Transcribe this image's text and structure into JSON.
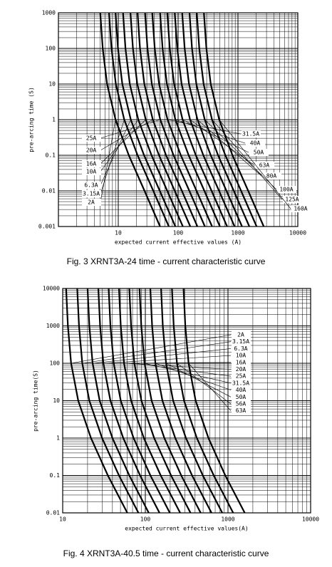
{
  "chart_data": [
    {
      "type": "line",
      "title": "Fig. 3 XRNT3A-24 time - current characteristic curve",
      "x_label": "expected current effective values (A)",
      "y_label": "pre-arcing time (S)",
      "xscale": "log",
      "yscale": "log",
      "grid": true,
      "minor_grid": true,
      "xlim": [
        1,
        10000
      ],
      "xticks": [
        10,
        100,
        1000,
        10000
      ],
      "ylim": [
        0.001,
        1000
      ],
      "yticks": [
        0.001,
        0.01,
        0.1,
        1,
        10,
        100,
        1000
      ],
      "series": [
        {
          "name": "2A",
          "color": "#000000",
          "x": [
            5,
            5.5,
            6.5,
            9,
            15,
            27.5,
            50
          ],
          "values": [
            1000,
            100,
            10,
            1,
            0.1,
            0.01,
            0.001
          ]
        },
        {
          "name": "3.15A",
          "color": "#000000",
          "x": [
            7,
            7.7,
            9.1,
            12.6,
            21,
            38.5,
            70
          ],
          "values": [
            1000,
            100,
            10,
            1,
            0.1,
            0.01,
            0.001
          ]
        },
        {
          "name": "6.3A",
          "color": "#000000",
          "x": [
            9,
            9.9,
            11.7,
            16.2,
            27,
            49.5,
            90
          ],
          "values": [
            1000,
            100,
            10,
            1,
            0.1,
            0.01,
            0.001
          ]
        },
        {
          "name": "10A",
          "color": "#000000",
          "x": [
            12,
            13.2,
            15.6,
            21.6,
            36,
            66,
            120
          ],
          "values": [
            1000,
            100,
            10,
            1,
            0.1,
            0.01,
            0.001
          ]
        },
        {
          "name": "16A",
          "color": "#000000",
          "x": [
            16,
            17.6,
            20.8,
            28.8,
            48,
            88,
            160
          ],
          "values": [
            1000,
            100,
            10,
            1,
            0.1,
            0.01,
            0.001
          ]
        },
        {
          "name": "20A",
          "color": "#000000",
          "x": [
            21,
            23.1,
            27.3,
            37.8,
            63,
            115.5,
            210
          ],
          "values": [
            1000,
            100,
            10,
            1,
            0.1,
            0.01,
            0.001
          ]
        },
        {
          "name": "25A",
          "color": "#000000",
          "x": [
            28,
            30.8,
            36.4,
            50.4,
            84,
            154,
            280
          ],
          "values": [
            1000,
            100,
            10,
            1,
            0.1,
            0.01,
            0.001
          ]
        },
        {
          "name": "31.5A",
          "color": "#000000",
          "x": [
            37,
            40.7,
            48.1,
            66.6,
            111,
            203.5,
            370
          ],
          "values": [
            1000,
            100,
            10,
            1,
            0.1,
            0.01,
            0.001
          ]
        },
        {
          "name": "40A",
          "color": "#000000",
          "x": [
            50,
            55,
            65,
            90,
            150,
            275,
            500
          ],
          "values": [
            1000,
            100,
            10,
            1,
            0.1,
            0.01,
            0.001
          ]
        },
        {
          "name": "50A",
          "color": "#000000",
          "x": [
            66,
            72.6,
            85.8,
            118.8,
            198,
            363,
            660
          ],
          "values": [
            1000,
            100,
            10,
            1,
            0.1,
            0.01,
            0.001
          ]
        },
        {
          "name": "63A",
          "color": "#000000",
          "x": [
            88,
            96.8,
            114.4,
            158.4,
            264,
            484,
            880
          ],
          "values": [
            1000,
            100,
            10,
            1,
            0.1,
            0.01,
            0.001
          ]
        },
        {
          "name": "80A",
          "color": "#000000",
          "x": [
            117,
            128.7,
            152.1,
            210.6,
            351,
            643.5,
            1170
          ],
          "values": [
            1000,
            100,
            10,
            1,
            0.1,
            0.01,
            0.001
          ]
        },
        {
          "name": "100A",
          "color": "#000000",
          "x": [
            155,
            170.5,
            201.5,
            279,
            465,
            852.5,
            1550
          ],
          "values": [
            1000,
            100,
            10,
            1,
            0.1,
            0.01,
            0.001
          ]
        },
        {
          "name": "125A",
          "color": "#000000",
          "x": [
            205,
            225.5,
            266.5,
            369,
            615,
            1127.5,
            2050
          ],
          "values": [
            1000,
            100,
            10,
            1,
            0.1,
            0.01,
            0.001
          ]
        },
        {
          "name": "160A",
          "color": "#000000",
          "x": [
            270,
            297,
            351,
            486,
            810,
            1485,
            2700
          ],
          "values": [
            1000,
            100,
            10,
            1,
            0.1,
            0.01,
            0.001
          ]
        }
      ]
    },
    {
      "type": "line",
      "title": "Fig. 4 XRNT3A-40.5 time - current characteristic curve",
      "x_label": "expected current effective values(A)",
      "y_label": "pre-arcing time(S)",
      "xscale": "log",
      "yscale": "log",
      "grid": true,
      "minor_grid": true,
      "xlim": [
        10,
        10000
      ],
      "xticks": [
        10,
        100,
        1000,
        10000
      ],
      "ylim": [
        0.01,
        10000
      ],
      "yticks": [
        0.01,
        0.1,
        1,
        10,
        100,
        1000,
        10000
      ],
      "series": [
        {
          "name": "2A",
          "color": "#000000",
          "x": [
            11,
            11.55,
            12.65,
            15.4,
            22,
            35.2,
            60.5
          ],
          "values": [
            10000,
            1000,
            100,
            10,
            1,
            0.1,
            0.01
          ]
        },
        {
          "name": "3.15A",
          "color": "#000000",
          "x": [
            15,
            15.75,
            17.25,
            21,
            30,
            48,
            82.5
          ],
          "values": [
            10000,
            1000,
            100,
            10,
            1,
            0.1,
            0.01
          ]
        },
        {
          "name": "6.3A",
          "color": "#000000",
          "x": [
            20,
            21,
            23,
            28,
            40,
            64,
            110
          ],
          "values": [
            10000,
            1000,
            100,
            10,
            1,
            0.1,
            0.01
          ]
        },
        {
          "name": "10A",
          "color": "#000000",
          "x": [
            27,
            28.35,
            31.05,
            37.8,
            54,
            86.4,
            148.5
          ],
          "values": [
            10000,
            1000,
            100,
            10,
            1,
            0.1,
            0.01
          ]
        },
        {
          "name": "16A",
          "color": "#000000",
          "x": [
            36,
            37.8,
            41.4,
            50.4,
            72,
            115.2,
            198
          ],
          "values": [
            10000,
            1000,
            100,
            10,
            1,
            0.1,
            0.01
          ]
        },
        {
          "name": "20A",
          "color": "#000000",
          "x": [
            48,
            50.4,
            55.2,
            67.2,
            96,
            153.6,
            264
          ],
          "values": [
            10000,
            1000,
            100,
            10,
            1,
            0.1,
            0.01
          ]
        },
        {
          "name": "25A",
          "color": "#000000",
          "x": [
            64,
            67.2,
            73.6,
            89.6,
            128,
            204.8,
            352
          ],
          "values": [
            10000,
            1000,
            100,
            10,
            1,
            0.1,
            0.01
          ]
        },
        {
          "name": "31.5A",
          "color": "#000000",
          "x": [
            85,
            89.25,
            97.75,
            119,
            170,
            272,
            467.5
          ],
          "values": [
            10000,
            1000,
            100,
            10,
            1,
            0.1,
            0.01
          ]
        },
        {
          "name": "40A",
          "color": "#000000",
          "x": [
            115,
            120.75,
            132.25,
            161,
            230,
            368,
            632.5
          ],
          "values": [
            10000,
            1000,
            100,
            10,
            1,
            0.1,
            0.01
          ]
        },
        {
          "name": "50A",
          "color": "#000000",
          "x": [
            155,
            162.75,
            178.25,
            217,
            310,
            496,
            852.5
          ],
          "values": [
            10000,
            1000,
            100,
            10,
            1,
            0.1,
            0.01
          ]
        },
        {
          "name": "56A",
          "color": "#000000",
          "x": [
            210,
            220.5,
            241.5,
            294,
            420,
            672,
            1155
          ],
          "values": [
            10000,
            1000,
            100,
            10,
            1,
            0.1,
            0.01
          ]
        },
        {
          "name": "63A",
          "color": "#000000",
          "x": [
            290,
            304.5,
            333.5,
            406,
            580,
            928,
            1595
          ],
          "values": [
            10000,
            1000,
            100,
            10,
            1,
            0.1,
            0.01
          ]
        }
      ]
    }
  ]
}
